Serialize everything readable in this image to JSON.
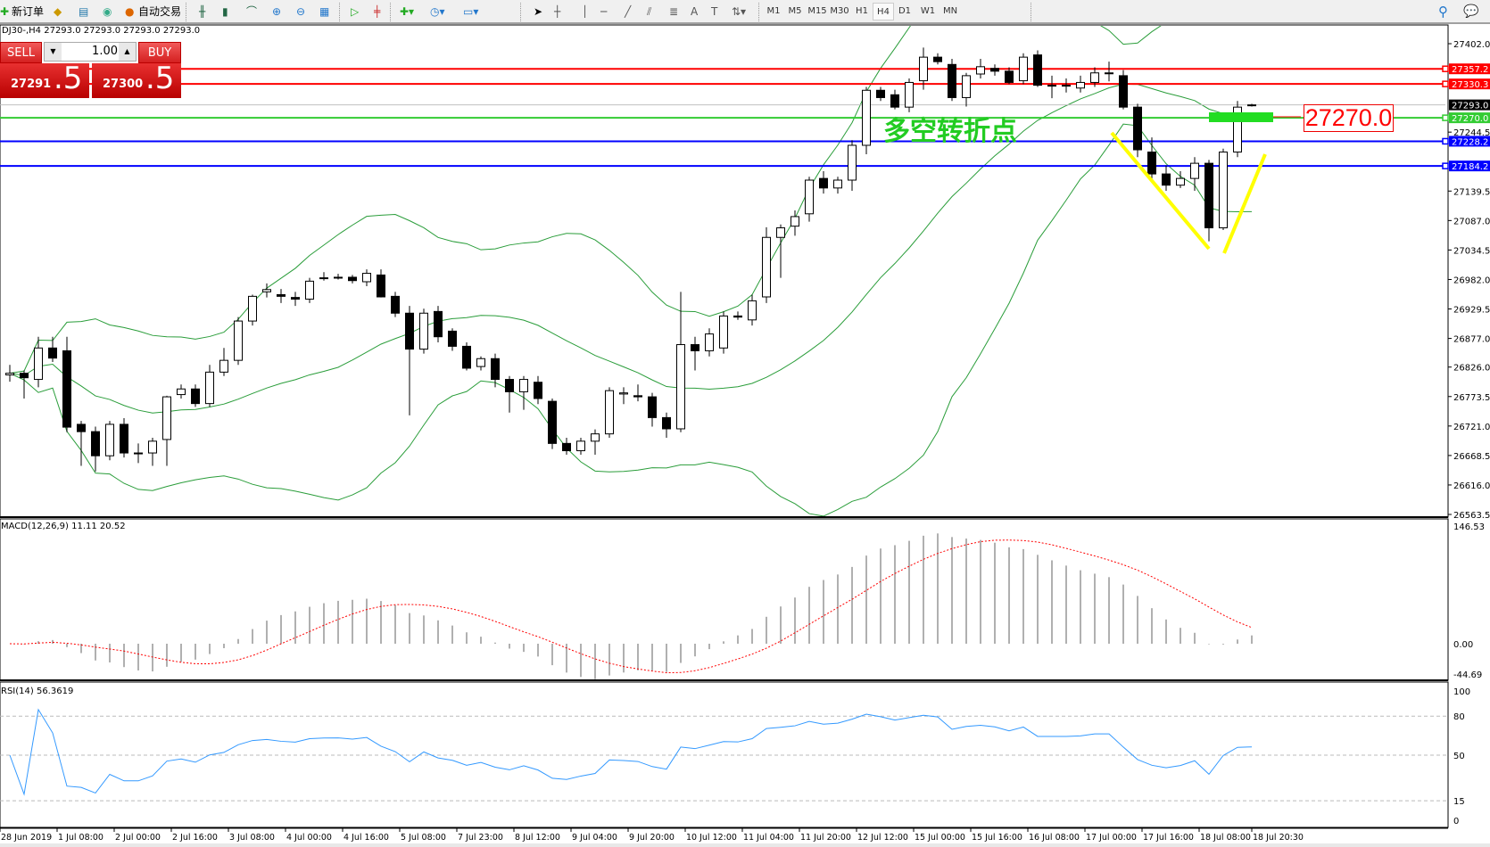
{
  "toolbar": {
    "new_order": "新订单",
    "auto_trading": "自动交易",
    "timeframes": [
      "M1",
      "M5",
      "M15",
      "M30",
      "H1",
      "H4",
      "D1",
      "W1",
      "MN"
    ],
    "active_timeframe": "H4"
  },
  "chart_info": "DJ30-,H4  27293.0 27293.0 27293.0 27293.0",
  "trade_panel": {
    "sell_label": "SELL",
    "buy_label": "BUY",
    "lot": "1.00",
    "sell_main": "27291",
    "sell_frac": ".5",
    "buy_main": "27300",
    "buy_frac": ".5"
  },
  "annotation_text": "多空转折点",
  "annotation_price": "27270.0",
  "macd_label": "MACD(12,26,9) 11.11 20.52",
  "rsi_label": "RSI(14) 56.3619",
  "colors": {
    "bull": "#ffffff",
    "bear": "#000000",
    "bollinger": "#2a9d3a",
    "resistance": "#ff0000",
    "support": "#0000ff",
    "pivot": "#33cc33",
    "annotation_lines": "#ffff00",
    "macd_hist": "#b0b0b0",
    "macd_signal": "#ff0000",
    "rsi": "#3399ff"
  },
  "chart_data": {
    "type": "candlestick",
    "symbol": "DJ30-",
    "timeframe": "H4",
    "ylim": [
      26563.5,
      27430
    ],
    "y_ticks": [
      "27402.0",
      "27244.5",
      "27139.5",
      "27087.0",
      "27034.5",
      "26982.0",
      "26929.5",
      "26877.0",
      "26826.0",
      "26773.5",
      "26721.0",
      "26668.5",
      "26616.0",
      "26563.5"
    ],
    "x_ticks": [
      "28 Jun 2019",
      "1 Jul 08:00",
      "2 Jul 00:00",
      "2 Jul 16:00",
      "3 Jul 08:00",
      "4 Jul 00:00",
      "4 Jul 16:00",
      "5 Jul 08:00",
      "7 Jul 23:00",
      "8 Jul 12:00",
      "9 Jul 04:00",
      "9 Jul 20:00",
      "10 Jul 12:00",
      "11 Jul 04:00",
      "11 Jul 20:00",
      "12 Jul 12:00",
      "15 Jul 00:00",
      "15 Jul 16:00",
      "16 Jul 08:00",
      "17 Jul 00:00",
      "17 Jul 16:00",
      "18 Jul 08:00",
      "18 Jul 20:30"
    ],
    "ohlc": [
      [
        26812,
        26830,
        26800,
        26815
      ],
      [
        26815,
        26820,
        26770,
        26807
      ],
      [
        26804,
        26880,
        26790,
        26860
      ],
      [
        26860,
        26880,
        26835,
        26842
      ],
      [
        26855,
        26880,
        26710,
        26719
      ],
      [
        26724,
        26730,
        26650,
        26711
      ],
      [
        26711,
        26720,
        26640,
        26668
      ],
      [
        26668,
        26730,
        26660,
        26724
      ],
      [
        26724,
        26735,
        26665,
        26673
      ],
      [
        26673,
        26690,
        26655,
        26673
      ],
      [
        26673,
        26700,
        26650,
        26694
      ],
      [
        26697,
        26775,
        26650,
        26773
      ],
      [
        26777,
        26795,
        26770,
        26787
      ],
      [
        26787,
        26795,
        26755,
        26761
      ],
      [
        26761,
        26830,
        26755,
        26817
      ],
      [
        26817,
        26860,
        26810,
        26838
      ],
      [
        26838,
        26915,
        26830,
        26908
      ],
      [
        26908,
        26955,
        26900,
        26952
      ],
      [
        26960,
        26975,
        26950,
        26964
      ],
      [
        26955,
        26965,
        26940,
        26952
      ],
      [
        26950,
        26960,
        26935,
        26947
      ],
      [
        26947,
        26985,
        26940,
        26979
      ],
      [
        26985,
        26995,
        26980,
        26985
      ],
      [
        26986,
        26992,
        26982,
        26986
      ],
      [
        26986,
        26990,
        26975,
        26980
      ],
      [
        26978,
        27000,
        26970,
        26993
      ],
      [
        26990,
        27000,
        26950,
        26951
      ],
      [
        26952,
        26960,
        26915,
        26922
      ],
      [
        26922,
        26935,
        26740,
        26858
      ],
      [
        26858,
        26930,
        26850,
        26922
      ],
      [
        26925,
        26935,
        26870,
        26880
      ],
      [
        26890,
        26895,
        26855,
        26863
      ],
      [
        26863,
        26870,
        26820,
        26824
      ],
      [
        26827,
        26845,
        26820,
        26841
      ],
      [
        26841,
        26850,
        26790,
        26804
      ],
      [
        26804,
        26810,
        26745,
        26782
      ],
      [
        26782,
        26810,
        26750,
        26804
      ],
      [
        26799,
        26810,
        26760,
        26770
      ],
      [
        26765,
        26770,
        26680,
        26690
      ],
      [
        26690,
        26700,
        26670,
        26677
      ],
      [
        26677,
        26700,
        26670,
        26694
      ],
      [
        26694,
        26715,
        26670,
        26707
      ],
      [
        26707,
        26790,
        26700,
        26784
      ],
      [
        26778,
        26790,
        26760,
        26780
      ],
      [
        26775,
        26795,
        26765,
        26773
      ],
      [
        26773,
        26780,
        26720,
        26736
      ],
      [
        26736,
        26745,
        26700,
        26716
      ],
      [
        26716,
        26960,
        26710,
        26866
      ],
      [
        26866,
        26880,
        26820,
        26855
      ],
      [
        26855,
        26895,
        26845,
        26885
      ],
      [
        26860,
        26925,
        26850,
        26917
      ],
      [
        26917,
        26925,
        26910,
        26915
      ],
      [
        26910,
        26955,
        26900,
        26944
      ],
      [
        26951,
        27075,
        26940,
        27057
      ],
      [
        27057,
        27080,
        26985,
        27074
      ],
      [
        27077,
        27105,
        27060,
        27094
      ],
      [
        27099,
        27165,
        27085,
        27159
      ],
      [
        27162,
        27175,
        27135,
        27145
      ],
      [
        27145,
        27165,
        27135,
        27159
      ],
      [
        27159,
        27230,
        27140,
        27221
      ],
      [
        27221,
        27325,
        27205,
        27319
      ],
      [
        27319,
        27325,
        27300,
        27306
      ],
      [
        27311,
        27320,
        27285,
        27289
      ],
      [
        27289,
        27340,
        27280,
        27333
      ],
      [
        27336,
        27395,
        27320,
        27378
      ],
      [
        27378,
        27385,
        27365,
        27370
      ],
      [
        27365,
        27375,
        27300,
        27306
      ],
      [
        27306,
        27350,
        27290,
        27345
      ],
      [
        27348,
        27375,
        27340,
        27361
      ],
      [
        27358,
        27365,
        27345,
        27353
      ],
      [
        27353,
        27360,
        27330,
        27333
      ],
      [
        27336,
        27385,
        27330,
        27378
      ],
      [
        27382,
        27390,
        27325,
        27328
      ],
      [
        27328,
        27345,
        27305,
        27328
      ],
      [
        27328,
        27340,
        27315,
        27328
      ],
      [
        27323,
        27345,
        27315,
        27333
      ],
      [
        27333,
        27360,
        27325,
        27350
      ],
      [
        27350,
        27370,
        27335,
        27350
      ],
      [
        27345,
        27355,
        27285,
        27289
      ],
      [
        27289,
        27295,
        27200,
        27213
      ],
      [
        27209,
        27235,
        27160,
        27170
      ],
      [
        27170,
        27185,
        27140,
        27150
      ],
      [
        27150,
        27175,
        27145,
        27162
      ],
      [
        27162,
        27200,
        27140,
        27189
      ],
      [
        27189,
        27195,
        27050,
        27074
      ],
      [
        27074,
        27215,
        27070,
        27209
      ],
      [
        27209,
        27300,
        27200,
        27289
      ],
      [
        27293,
        27295,
        27290,
        27293
      ]
    ],
    "horizontal_lines": [
      {
        "price": 27357.2,
        "label": "27357.2",
        "color": "#ff0000"
      },
      {
        "price": 27330.3,
        "label": "27330.3",
        "color": "#ff0000"
      },
      {
        "price": 27293.0,
        "label": "27293.0",
        "color": "#c0c0c0",
        "label_bg": "#000000"
      },
      {
        "price": 27270.0,
        "label": "27270.0",
        "color": "#33cc33"
      },
      {
        "price": 27228.2,
        "label": "27228.2",
        "color": "#0000ff"
      },
      {
        "price": 27184.2,
        "label": "27184.2",
        "color": "#0000ff"
      }
    ],
    "indicators": {
      "bollinger": {
        "period": 20,
        "deviation": 2
      },
      "macd": {
        "fast": 12,
        "slow": 26,
        "signal": 9,
        "value": 11.11,
        "signal_value": 20.52,
        "ylim": [
          -44.69,
          146.53
        ],
        "y_ticks": [
          "146.53",
          "0.00",
          "-44.69"
        ]
      },
      "rsi": {
        "period": 14,
        "value": 56.3619,
        "ylim": [
          0,
          100
        ],
        "levels": [
          80,
          50,
          15
        ],
        "y_ticks": [
          "100",
          "80",
          "50",
          "15",
          "0"
        ]
      }
    }
  }
}
